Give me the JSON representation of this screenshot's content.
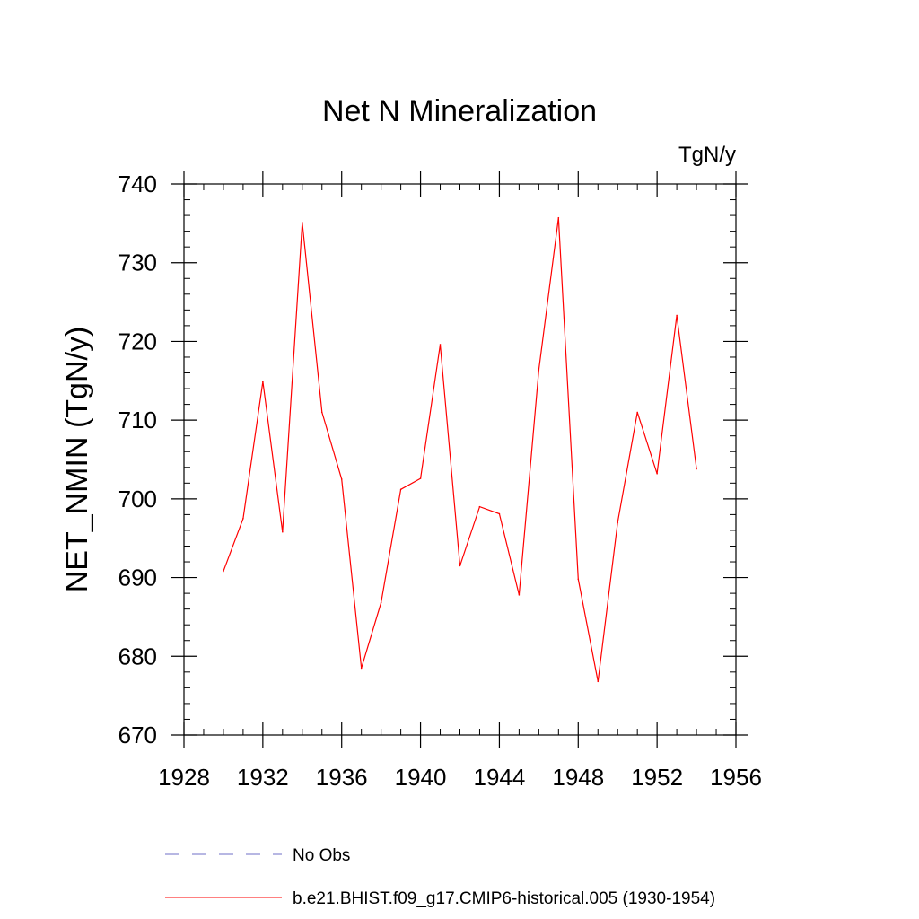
{
  "chart_data": {
    "type": "line",
    "title": "Net N Mineralization",
    "units": "TgN/y",
    "ylabel": "NET_NMIN  (TgN/y)",
    "xlabel": "",
    "xlim": [
      1928,
      1956
    ],
    "ylim": [
      670,
      740
    ],
    "xticks": [
      1928,
      1932,
      1936,
      1940,
      1944,
      1948,
      1952,
      1956
    ],
    "yticks": [
      670,
      680,
      690,
      700,
      710,
      720,
      730,
      740
    ],
    "grid": false,
    "legend_position": "bottom",
    "series": [
      {
        "name": "b.e21.BHIST.f09_g17.CMIP6-historical.005 (1930-1954)",
        "color": "#ff0000",
        "line_style": "solid",
        "x": [
          1930,
          1931,
          1932,
          1933,
          1934,
          1935,
          1936,
          1937,
          1938,
          1939,
          1940,
          1941,
          1942,
          1943,
          1944,
          1945,
          1946,
          1947,
          1948,
          1949,
          1950,
          1951,
          1952,
          1953,
          1954
        ],
        "y": [
          690.8,
          697.5,
          714.9,
          695.8,
          735.1,
          711.0,
          702.5,
          678.5,
          686.8,
          701.2,
          702.6,
          719.6,
          691.5,
          699.0,
          698.1,
          687.8,
          716.4,
          735.7,
          689.8,
          676.8,
          697.0,
          711.0,
          703.2,
          723.3,
          703.8
        ]
      }
    ],
    "legend": [
      {
        "label": "No Obs",
        "color": "#6f6fc7",
        "line_style": "dashed"
      },
      {
        "label": "b.e21.BHIST.f09_g17.CMIP6-historical.005 (1930-1954)",
        "color": "#ff0000",
        "line_style": "solid"
      }
    ]
  }
}
